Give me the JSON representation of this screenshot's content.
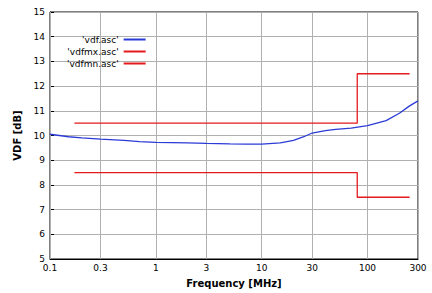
{
  "chart_data": {
    "type": "line",
    "x_label": "Frequency [MHz]",
    "y_label": "VDF [dB]",
    "log": "x",
    "grid": true,
    "legend": "top-left",
    "xlim": [
      0.1,
      300
    ],
    "ylim": [
      5,
      15
    ],
    "xticks": [
      0.1,
      0.3,
      1,
      3,
      10,
      30,
      100,
      300
    ],
    "yticks": [
      5,
      6,
      7,
      8,
      9,
      10,
      11,
      12,
      13,
      14,
      15
    ],
    "series": [
      {
        "name": "'vdf.asc'",
        "color": "#2b3bd6",
        "line_style": "solid",
        "x": [
          0.1,
          0.15,
          0.2,
          0.3,
          0.5,
          0.7,
          1,
          2,
          3,
          5,
          7,
          10,
          15,
          20,
          25,
          30,
          40,
          50,
          70,
          100,
          150,
          200,
          250,
          300
        ],
        "values": [
          10.05,
          9.95,
          9.9,
          9.85,
          9.8,
          9.75,
          9.72,
          9.7,
          9.68,
          9.66,
          9.65,
          9.65,
          9.7,
          9.8,
          9.95,
          10.1,
          10.2,
          10.25,
          10.3,
          10.4,
          10.6,
          10.9,
          11.2,
          11.4
        ]
      },
      {
        "name": "'vdfmx.asc'",
        "color": "#e41a1c",
        "line_style": "solid",
        "x": [
          0.17,
          80,
          80,
          250
        ],
        "values": [
          10.5,
          10.5,
          12.5,
          12.5
        ]
      },
      {
        "name": "'vdfmn.asc'",
        "color": "#e41a1c",
        "line_style": "solid",
        "x": [
          0.17,
          80,
          80,
          250
        ],
        "values": [
          8.5,
          8.5,
          7.5,
          7.5
        ]
      }
    ]
  }
}
